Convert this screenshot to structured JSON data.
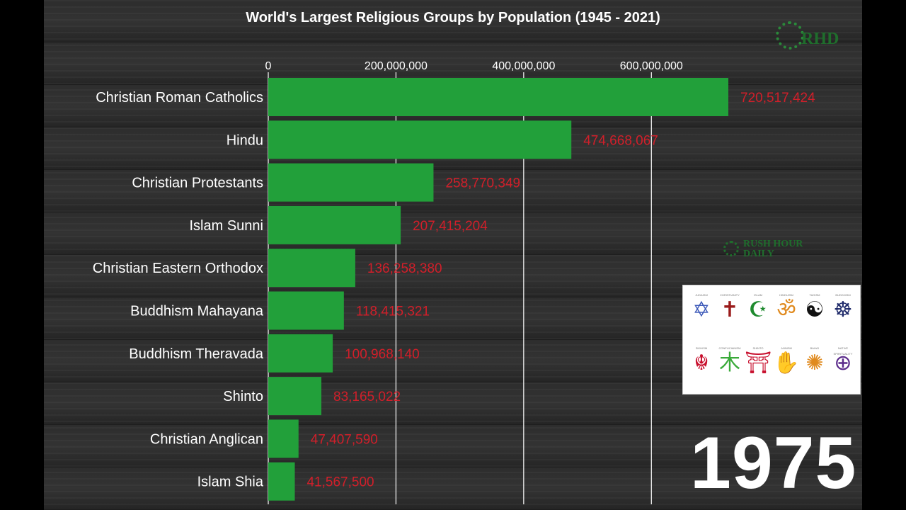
{
  "chart_data": {
    "type": "bar",
    "orientation": "horizontal",
    "title": "World's Largest Religious Groups by Population (1945 - 2021)",
    "categories": [
      "Christian Roman Catholics",
      "Hindu",
      "Christian Protestants",
      "Islam Sunni",
      "Christian Eastern Orthodox",
      "Buddhism Mahayana",
      "Buddhism Theravada",
      "Shinto",
      "Christian Anglican",
      "Islam Shia"
    ],
    "values": [
      720517424,
      474668067,
      258770349,
      207415204,
      136258380,
      118415321,
      100968140,
      83165022,
      47407590,
      41567500
    ],
    "value_labels": [
      "720,517,424",
      "474,668,067",
      "258,770,349",
      "207,415,204",
      "136,258,380",
      "118,415,321",
      "100,968,140",
      "83,165,022",
      "47,407,590",
      "41,567,500"
    ],
    "xticks": [
      0,
      200000000,
      400000000,
      600000000
    ],
    "xtick_labels": [
      "0",
      "200,000,000",
      "400,000,000",
      "600,000,000"
    ],
    "xlim": [
      0,
      720517424
    ],
    "grid": "vertical",
    "year": "1975",
    "bar_color": "#22a03a",
    "value_color": "#d11f2a"
  },
  "watermark": {
    "logo_text": "RHD",
    "mark_line1": "RUSH HOUR",
    "mark_line2": "DAILY"
  },
  "symbols": [
    {
      "caption": "JUDAISM",
      "glyph": "✡",
      "color": "#3a57b8"
    },
    {
      "caption": "CHRISTIANITY",
      "glyph": "✝",
      "color": "#9a1b1b"
    },
    {
      "caption": "ISLAM",
      "glyph": "☪",
      "color": "#1e8a2e"
    },
    {
      "caption": "HINDUISM",
      "glyph": "ॐ",
      "color": "#e08a1e"
    },
    {
      "caption": "TAOISM",
      "glyph": "☯",
      "color": "#111111"
    },
    {
      "caption": "BUDDHISM",
      "glyph": "☸",
      "color": "#1f2a6a"
    },
    {
      "caption": "SIKHISM",
      "glyph": "☬",
      "color": "#c8102e"
    },
    {
      "caption": "CONFUCIANISM",
      "glyph": "木",
      "color": "#3aaa3a"
    },
    {
      "caption": "SHINTO",
      "glyph": "⛩",
      "color": "#c8102e"
    },
    {
      "caption": "JAINISM",
      "glyph": "✋",
      "color": "#1f3a8a"
    },
    {
      "caption": "BAHA'I",
      "glyph": "✺",
      "color": "#e08a1e"
    },
    {
      "caption": "NATIVE SPIRITUALITY",
      "glyph": "⊕",
      "color": "#5a2a8a"
    }
  ]
}
